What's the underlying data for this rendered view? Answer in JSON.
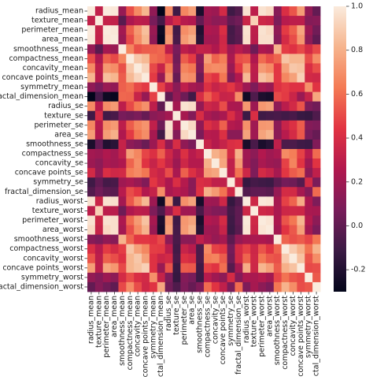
{
  "chart_data": {
    "type": "heatmap",
    "title": "",
    "xlabel": "",
    "ylabel": "",
    "labels": [
      "radius_mean",
      "texture_mean",
      "perimeter_mean",
      "area_mean",
      "smoothness_mean",
      "compactness_mean",
      "concavity_mean",
      "concave points_mean",
      "symmetry_mean",
      "fractal_dimension_mean",
      "radius_se",
      "texture_se",
      "perimeter_se",
      "area_se",
      "smoothness_se",
      "compactness_se",
      "concavity_se",
      "concave points_se",
      "symmetry_se",
      "fractal_dimension_se",
      "radius_worst",
      "texture_worst",
      "perimeter_worst",
      "area_worst",
      "smoothness_worst",
      "compactness_worst",
      "concavity_worst",
      "concave points_worst",
      "symmetry_worst",
      "fractal_dimension_worst"
    ],
    "matrix": [
      [
        1.0,
        0.32,
        1.0,
        0.99,
        0.17,
        0.51,
        0.68,
        0.82,
        0.15,
        -0.31,
        0.68,
        -0.1,
        0.67,
        0.74,
        -0.22,
        0.21,
        0.19,
        0.38,
        -0.1,
        -0.04,
        0.97,
        0.3,
        0.97,
        0.94,
        0.12,
        0.41,
        0.53,
        0.74,
        0.16,
        0.01
      ],
      [
        0.32,
        1.0,
        0.33,
        0.32,
        -0.02,
        0.24,
        0.3,
        0.29,
        0.07,
        -0.08,
        0.28,
        0.39,
        0.28,
        0.26,
        0.01,
        0.19,
        0.14,
        0.16,
        0.01,
        0.05,
        0.35,
        0.91,
        0.36,
        0.34,
        0.08,
        0.28,
        0.3,
        0.3,
        0.11,
        0.12
      ],
      [
        1.0,
        0.33,
        1.0,
        0.99,
        0.21,
        0.56,
        0.72,
        0.85,
        0.18,
        -0.26,
        0.69,
        -0.09,
        0.69,
        0.74,
        -0.2,
        0.25,
        0.23,
        0.41,
        -0.08,
        -0.01,
        0.97,
        0.3,
        0.97,
        0.94,
        0.15,
        0.46,
        0.56,
        0.77,
        0.19,
        0.05
      ],
      [
        0.99,
        0.32,
        0.99,
        1.0,
        0.18,
        0.5,
        0.69,
        0.82,
        0.15,
        -0.28,
        0.73,
        -0.07,
        0.73,
        0.8,
        -0.17,
        0.21,
        0.21,
        0.37,
        -0.07,
        -0.02,
        0.96,
        0.29,
        0.96,
        0.96,
        0.12,
        0.39,
        0.51,
        0.72,
        0.14,
        0.0
      ],
      [
        0.17,
        -0.02,
        0.21,
        0.18,
        1.0,
        0.66,
        0.52,
        0.55,
        0.56,
        0.58,
        0.3,
        0.07,
        0.3,
        0.25,
        0.33,
        0.32,
        0.25,
        0.38,
        0.2,
        0.28,
        0.21,
        0.04,
        0.24,
        0.21,
        0.81,
        0.47,
        0.43,
        0.5,
        0.39,
        0.5
      ],
      [
        0.51,
        0.24,
        0.56,
        0.5,
        0.66,
        1.0,
        0.88,
        0.83,
        0.6,
        0.57,
        0.5,
        0.05,
        0.55,
        0.46,
        0.14,
        0.74,
        0.57,
        0.64,
        0.23,
        0.51,
        0.54,
        0.25,
        0.59,
        0.51,
        0.57,
        0.87,
        0.82,
        0.82,
        0.51,
        0.69
      ],
      [
        0.68,
        0.3,
        0.72,
        0.69,
        0.52,
        0.88,
        1.0,
        0.92,
        0.5,
        0.34,
        0.63,
        0.08,
        0.66,
        0.62,
        0.1,
        0.67,
        0.69,
        0.68,
        0.18,
        0.45,
        0.69,
        0.3,
        0.73,
        0.68,
        0.45,
        0.75,
        0.88,
        0.86,
        0.41,
        0.51
      ],
      [
        0.82,
        0.29,
        0.85,
        0.82,
        0.55,
        0.83,
        0.92,
        1.0,
        0.46,
        0.17,
        0.7,
        0.02,
        0.71,
        0.69,
        0.03,
        0.49,
        0.44,
        0.62,
        0.1,
        0.26,
        0.83,
        0.29,
        0.86,
        0.81,
        0.45,
        0.67,
        0.75,
        0.91,
        0.38,
        0.37
      ],
      [
        0.15,
        0.07,
        0.18,
        0.15,
        0.56,
        0.6,
        0.5,
        0.46,
        1.0,
        0.48,
        0.3,
        0.13,
        0.31,
        0.22,
        0.19,
        0.42,
        0.34,
        0.39,
        0.45,
        0.33,
        0.19,
        0.09,
        0.22,
        0.18,
        0.43,
        0.47,
        0.43,
        0.43,
        0.7,
        0.44
      ],
      [
        -0.31,
        -0.08,
        -0.26,
        -0.28,
        0.58,
        0.57,
        0.34,
        0.17,
        0.48,
        1.0,
        0.0,
        0.16,
        0.04,
        -0.09,
        0.4,
        0.56,
        0.45,
        0.34,
        0.35,
        0.69,
        -0.25,
        -0.05,
        -0.21,
        -0.23,
        0.5,
        0.46,
        0.35,
        0.18,
        0.33,
        0.77
      ],
      [
        0.68,
        0.28,
        0.69,
        0.73,
        0.3,
        0.5,
        0.63,
        0.7,
        0.3,
        0.0,
        1.0,
        0.21,
        0.97,
        0.95,
        0.16,
        0.36,
        0.33,
        0.51,
        0.24,
        0.23,
        0.72,
        0.19,
        0.72,
        0.75,
        0.14,
        0.29,
        0.38,
        0.53,
        0.09,
        0.05
      ],
      [
        -0.1,
        0.39,
        -0.09,
        -0.07,
        0.07,
        0.05,
        0.08,
        0.02,
        0.13,
        0.16,
        0.21,
        1.0,
        0.22,
        0.11,
        0.4,
        0.23,
        0.19,
        0.23,
        0.41,
        0.28,
        -0.11,
        0.41,
        -0.1,
        -0.08,
        -0.07,
        -0.09,
        -0.07,
        -0.12,
        -0.13,
        -0.05
      ],
      [
        0.67,
        0.28,
        0.69,
        0.73,
        0.3,
        0.55,
        0.66,
        0.71,
        0.31,
        0.04,
        0.97,
        0.22,
        1.0,
        0.94,
        0.15,
        0.42,
        0.36,
        0.56,
        0.27,
        0.24,
        0.7,
        0.2,
        0.72,
        0.73,
        0.13,
        0.34,
        0.42,
        0.55,
        0.11,
        0.09
      ],
      [
        0.74,
        0.26,
        0.74,
        0.8,
        0.25,
        0.46,
        0.62,
        0.69,
        0.22,
        -0.09,
        0.95,
        0.11,
        0.94,
        1.0,
        0.08,
        0.28,
        0.27,
        0.42,
        0.13,
        0.13,
        0.76,
        0.2,
        0.76,
        0.81,
        0.13,
        0.28,
        0.39,
        0.54,
        0.07,
        0.02
      ],
      [
        -0.22,
        0.01,
        -0.2,
        -0.17,
        0.33,
        0.14,
        0.1,
        0.03,
        0.19,
        0.4,
        0.16,
        0.4,
        0.15,
        0.08,
        1.0,
        0.34,
        0.27,
        0.33,
        0.41,
        0.43,
        -0.23,
        -0.07,
        -0.22,
        -0.18,
        0.31,
        -0.06,
        -0.06,
        -0.1,
        -0.11,
        0.1
      ],
      [
        0.21,
        0.19,
        0.25,
        0.21,
        0.32,
        0.74,
        0.67,
        0.49,
        0.42,
        0.56,
        0.36,
        0.23,
        0.42,
        0.28,
        0.34,
        1.0,
        0.8,
        0.74,
        0.39,
        0.8,
        0.2,
        0.14,
        0.26,
        0.2,
        0.23,
        0.68,
        0.64,
        0.48,
        0.28,
        0.59
      ],
      [
        0.19,
        0.14,
        0.23,
        0.21,
        0.25,
        0.57,
        0.69,
        0.44,
        0.34,
        0.45,
        0.33,
        0.19,
        0.36,
        0.27,
        0.27,
        0.8,
        1.0,
        0.77,
        0.31,
        0.73,
        0.19,
        0.1,
        0.23,
        0.19,
        0.17,
        0.48,
        0.66,
        0.44,
        0.2,
        0.44
      ],
      [
        0.38,
        0.16,
        0.41,
        0.37,
        0.38,
        0.64,
        0.68,
        0.62,
        0.39,
        0.34,
        0.51,
        0.23,
        0.56,
        0.42,
        0.33,
        0.74,
        0.77,
        1.0,
        0.31,
        0.61,
        0.36,
        0.09,
        0.39,
        0.34,
        0.22,
        0.45,
        0.55,
        0.6,
        0.14,
        0.31
      ],
      [
        -0.1,
        0.01,
        -0.08,
        -0.07,
        0.2,
        0.23,
        0.18,
        0.1,
        0.45,
        0.35,
        0.24,
        0.41,
        0.27,
        0.13,
        0.41,
        0.39,
        0.31,
        0.31,
        1.0,
        0.37,
        -0.13,
        -0.08,
        -0.1,
        -0.11,
        -0.01,
        0.06,
        0.04,
        -0.03,
        0.39,
        0.08
      ],
      [
        -0.04,
        0.05,
        -0.01,
        -0.02,
        0.28,
        0.51,
        0.45,
        0.26,
        0.33,
        0.69,
        0.23,
        0.28,
        0.24,
        0.13,
        0.43,
        0.8,
        0.73,
        0.61,
        0.37,
        1.0,
        -0.04,
        -0.0,
        -0.0,
        -0.02,
        0.17,
        0.39,
        0.38,
        0.22,
        0.11,
        0.59
      ],
      [
        0.97,
        0.35,
        0.97,
        0.96,
        0.21,
        0.54,
        0.69,
        0.83,
        0.19,
        -0.25,
        0.72,
        -0.11,
        0.7,
        0.76,
        -0.23,
        0.2,
        0.19,
        0.36,
        -0.13,
        -0.04,
        1.0,
        0.36,
        0.99,
        0.98,
        0.22,
        0.48,
        0.57,
        0.79,
        0.24,
        0.09
      ],
      [
        0.3,
        0.91,
        0.3,
        0.29,
        0.04,
        0.25,
        0.3,
        0.29,
        0.09,
        -0.05,
        0.19,
        0.41,
        0.2,
        0.2,
        -0.07,
        0.14,
        0.1,
        0.09,
        -0.08,
        -0.0,
        0.36,
        1.0,
        0.37,
        0.35,
        0.23,
        0.36,
        0.37,
        0.36,
        0.23,
        0.22
      ],
      [
        0.97,
        0.36,
        0.97,
        0.96,
        0.24,
        0.59,
        0.73,
        0.86,
        0.22,
        -0.21,
        0.72,
        -0.1,
        0.72,
        0.76,
        -0.22,
        0.26,
        0.23,
        0.39,
        -0.1,
        -0.0,
        0.99,
        0.37,
        1.0,
        0.98,
        0.24,
        0.53,
        0.62,
        0.82,
        0.27,
        0.14
      ],
      [
        0.94,
        0.34,
        0.94,
        0.96,
        0.21,
        0.51,
        0.68,
        0.81,
        0.18,
        -0.23,
        0.75,
        -0.08,
        0.73,
        0.81,
        -0.18,
        0.2,
        0.19,
        0.34,
        -0.11,
        -0.02,
        0.98,
        0.35,
        0.98,
        1.0,
        0.21,
        0.44,
        0.54,
        0.75,
        0.21,
        0.08
      ],
      [
        0.12,
        0.08,
        0.15,
        0.12,
        0.81,
        0.57,
        0.45,
        0.45,
        0.43,
        0.5,
        0.14,
        -0.07,
        0.13,
        0.13,
        0.31,
        0.23,
        0.17,
        0.22,
        -0.01,
        0.17,
        0.22,
        0.23,
        0.24,
        0.21,
        1.0,
        0.57,
        0.52,
        0.55,
        0.49,
        0.62
      ],
      [
        0.41,
        0.28,
        0.46,
        0.39,
        0.47,
        0.87,
        0.75,
        0.67,
        0.47,
        0.46,
        0.29,
        -0.09,
        0.34,
        0.28,
        -0.06,
        0.68,
        0.48,
        0.45,
        0.06,
        0.39,
        0.48,
        0.36,
        0.53,
        0.44,
        0.57,
        1.0,
        0.89,
        0.8,
        0.61,
        0.81
      ],
      [
        0.53,
        0.3,
        0.56,
        0.51,
        0.43,
        0.82,
        0.88,
        0.75,
        0.43,
        0.35,
        0.38,
        -0.07,
        0.42,
        0.39,
        -0.06,
        0.64,
        0.66,
        0.55,
        0.04,
        0.38,
        0.57,
        0.37,
        0.62,
        0.54,
        0.52,
        0.89,
        1.0,
        0.86,
        0.53,
        0.69
      ],
      [
        0.74,
        0.3,
        0.77,
        0.72,
        0.5,
        0.82,
        0.86,
        0.91,
        0.43,
        0.18,
        0.53,
        -0.12,
        0.55,
        0.54,
        -0.1,
        0.48,
        0.44,
        0.6,
        -0.03,
        0.22,
        0.79,
        0.36,
        0.82,
        0.75,
        0.55,
        0.8,
        0.86,
        1.0,
        0.5,
        0.51
      ],
      [
        0.16,
        0.11,
        0.19,
        0.14,
        0.39,
        0.51,
        0.41,
        0.38,
        0.7,
        0.33,
        0.09,
        -0.13,
        0.11,
        0.07,
        -0.11,
        0.28,
        0.2,
        0.14,
        0.39,
        0.11,
        0.24,
        0.23,
        0.27,
        0.21,
        0.49,
        0.61,
        0.53,
        0.5,
        1.0,
        0.54
      ],
      [
        0.01,
        0.12,
        0.05,
        0.0,
        0.5,
        0.69,
        0.51,
        0.37,
        0.44,
        0.77,
        0.05,
        -0.05,
        0.09,
        0.02,
        0.1,
        0.59,
        0.44,
        0.31,
        0.08,
        0.59,
        0.09,
        0.22,
        0.14,
        0.08,
        0.62,
        0.81,
        0.69,
        0.51,
        0.54,
        1.0
      ]
    ],
    "colorbar": {
      "vmin": -0.3,
      "vmax": 1.0,
      "ticks": [
        "1.0",
        "0.8",
        "0.6",
        "0.4",
        "0.2",
        "0.0",
        "-0.2"
      ],
      "tick_values": [
        1.0,
        0.8,
        0.6,
        0.4,
        0.2,
        0.0,
        -0.2
      ],
      "colormap": "rocket",
      "stops": [
        "#03051a",
        "#3a1a44",
        "#781c5a",
        "#b1184e",
        "#e13342",
        "#f47a54",
        "#f6b48d",
        "#faebdd"
      ]
    },
    "grid": false,
    "legend": "colorbar-right"
  }
}
